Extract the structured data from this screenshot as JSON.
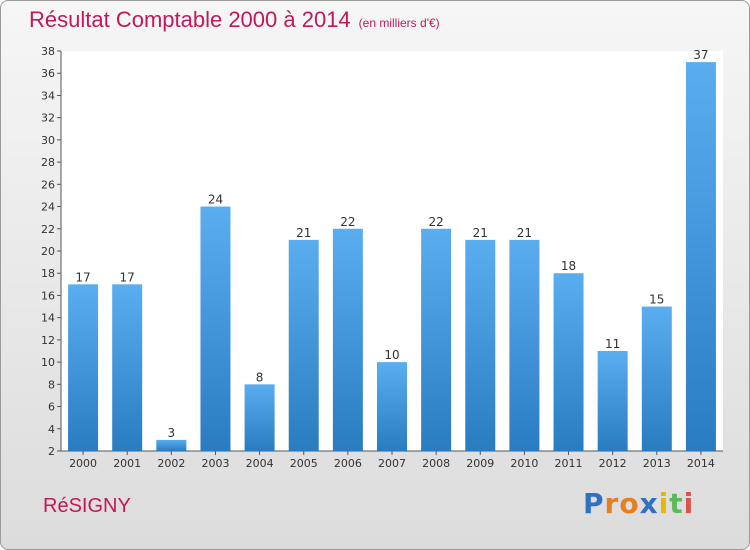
{
  "chart_data": {
    "type": "bar",
    "title": "Résultat Comptable 2000 à 2014",
    "subtitle": "(en milliers d'€)",
    "categories": [
      "2000",
      "2001",
      "2002",
      "2003",
      "2004",
      "2005",
      "2006",
      "2007",
      "2008",
      "2009",
      "2010",
      "2011",
      "2012",
      "2013",
      "2014"
    ],
    "values": [
      17,
      17,
      3,
      24,
      8,
      21,
      22,
      10,
      22,
      21,
      21,
      18,
      11,
      15,
      37
    ],
    "ylim": [
      2,
      38
    ],
    "yticks": [
      2,
      4,
      6,
      8,
      10,
      12,
      14,
      16,
      18,
      20,
      22,
      24,
      26,
      28,
      30,
      32,
      34,
      36,
      38
    ],
    "grid": false,
    "bar_color": "#3d8fd1"
  },
  "footer": {
    "place": "RéSIGNY",
    "logo_letters": [
      "P",
      "r",
      "o",
      "x",
      "i",
      "t",
      "i"
    ],
    "logo_colors": [
      "#2f6fc4",
      "#e67e22",
      "#e67e22",
      "#2f6fc4",
      "#e6b800",
      "#5cb85c",
      "#d9534f"
    ]
  }
}
